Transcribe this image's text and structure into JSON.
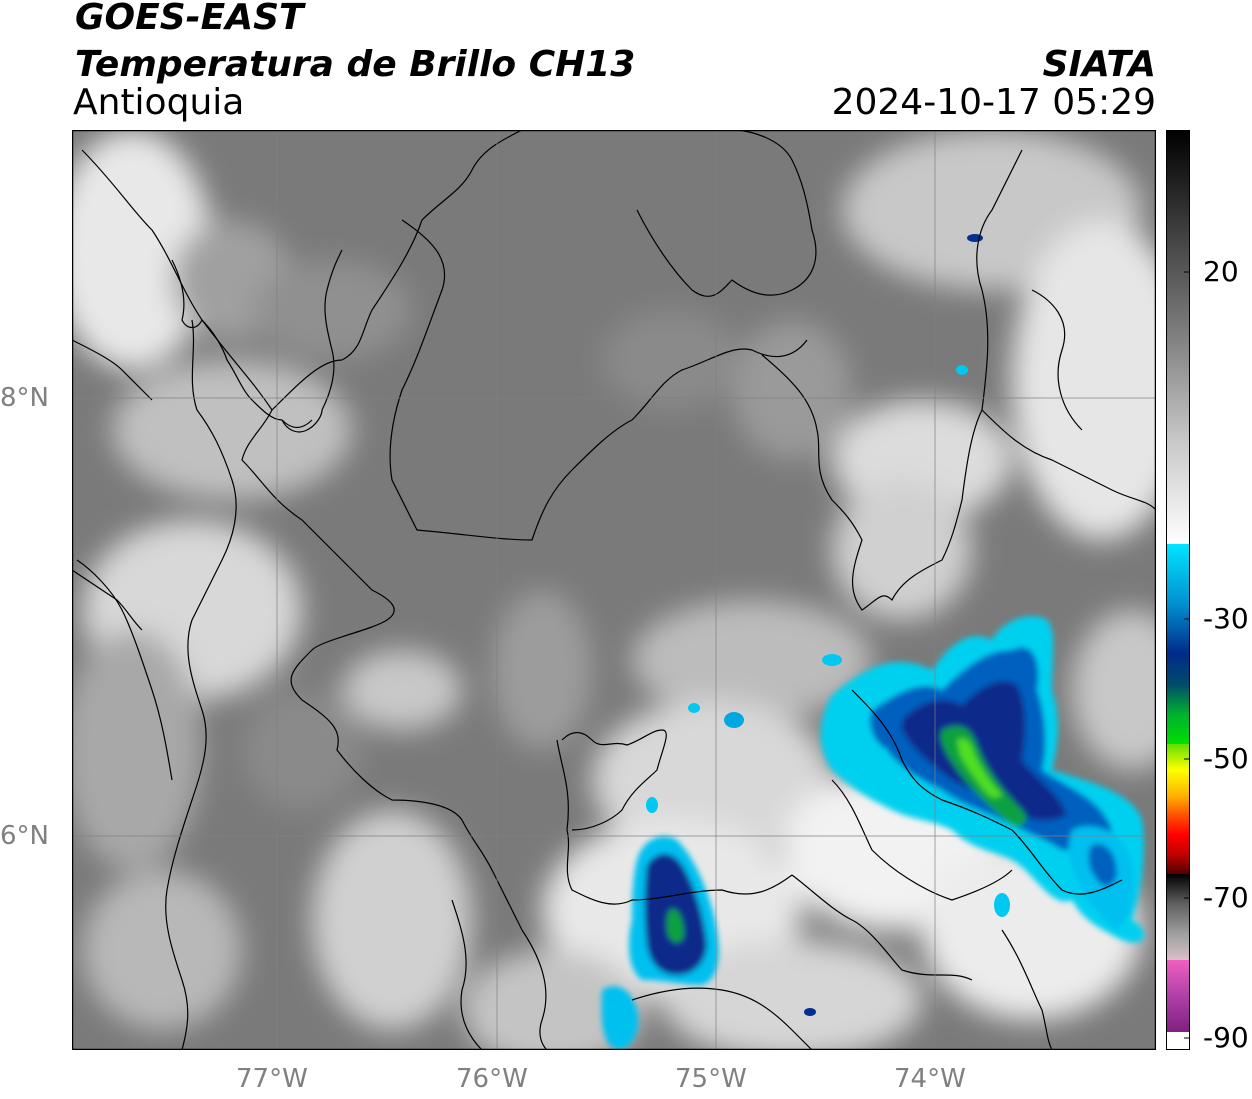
{
  "header": {
    "satellite": "GOES-EAST",
    "product": "Temperatura de Brillo CH13",
    "region": "Antioquia",
    "agency": "SIATA",
    "datetime": "2024-10-17 05:29"
  },
  "map": {
    "lat_labels": [
      "8°N",
      "6°N"
    ],
    "lon_labels": [
      "77°W",
      "76°W",
      "75°W",
      "74°W"
    ],
    "extent": {
      "lon_min": -77.95,
      "lon_max": -73.05,
      "lat_min": 5.1,
      "lat_max": 9.3
    },
    "gridlines": true
  },
  "colorbar": {
    "labels": [
      "20",
      "-30",
      "-50",
      "-70",
      "-90"
    ],
    "unit": "°C",
    "range": [
      -90,
      35
    ],
    "segments": [
      {
        "from": 35,
        "to": -15,
        "colors": [
          "#000000",
          "#404040",
          "#808080",
          "#c8c8c8",
          "#ffffff"
        ]
      },
      {
        "from": -15,
        "to": -40,
        "colors": [
          "#00e5ff",
          "#0090d0",
          "#002a8a",
          "#004b6a",
          "#00b030",
          "#00e000"
        ]
      },
      {
        "from": -40,
        "to": -65,
        "colors": [
          "#60e000",
          "#ffff00",
          "#ffb000",
          "#ff5000",
          "#ff0000",
          "#c00000",
          "#500000"
        ]
      },
      {
        "from": -65,
        "to": -78,
        "colors": [
          "#000000",
          "#606060",
          "#a0a0a0",
          "#d8c0c8"
        ]
      },
      {
        "from": -78,
        "to": -90,
        "colors": [
          "#f060c0",
          "#b040a8",
          "#802080"
        ]
      }
    ]
  }
}
